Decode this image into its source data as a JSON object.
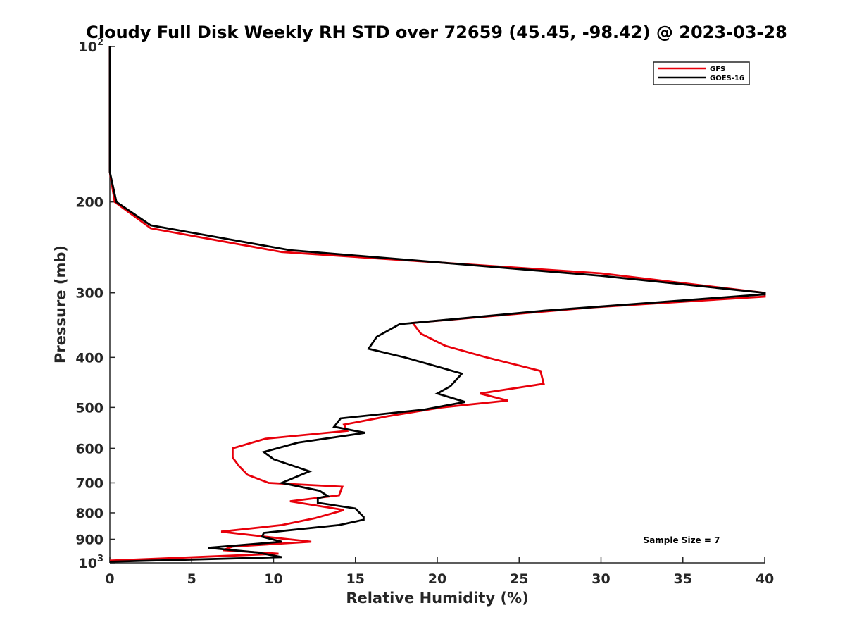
{
  "chart_data": {
    "type": "line",
    "title": "Cloudy Full Disk Weekly RH STD over 72659 (45.45, -98.42) @ 2023-03-28",
    "xlabel": "Relative Humidity (%)",
    "ylabel": "Pressure (mb)",
    "xlim": [
      0,
      40
    ],
    "ylim": [
      100,
      1000
    ],
    "yscale": "log",
    "y_reversed": true,
    "grid": false,
    "legend_position": "top-right",
    "x_ticks": [
      "0",
      "5",
      "10",
      "15",
      "20",
      "25",
      "30",
      "35",
      "40"
    ],
    "y_ticks": [
      {
        "value": 100,
        "base": "10",
        "exp": "2"
      },
      {
        "value": 200,
        "label": "200"
      },
      {
        "value": 300,
        "label": "300"
      },
      {
        "value": 400,
        "label": "400"
      },
      {
        "value": 500,
        "label": "500"
      },
      {
        "value": 600,
        "label": "600"
      },
      {
        "value": 700,
        "label": "700"
      },
      {
        "value": 800,
        "label": "800"
      },
      {
        "value": 900,
        "label": "900"
      },
      {
        "value": 1000,
        "base": "10",
        "exp": "3"
      }
    ],
    "annotation": "Sample Size = 7",
    "series": [
      {
        "name": "GFS",
        "color": "#e8000b",
        "points": [
          [
            0.0,
            100
          ],
          [
            0.0,
            150
          ],
          [
            0.0,
            175
          ],
          [
            0.3,
            200
          ],
          [
            2.5,
            225
          ],
          [
            10.5,
            250
          ],
          [
            30.0,
            275
          ],
          [
            40.0,
            300
          ],
          [
            40.0,
            305
          ],
          [
            29.5,
            320
          ],
          [
            18.5,
            343
          ],
          [
            19.0,
            360
          ],
          [
            20.5,
            380
          ],
          [
            23.0,
            400
          ],
          [
            26.3,
            425
          ],
          [
            26.5,
            450
          ],
          [
            22.6,
            470
          ],
          [
            24.3,
            485
          ],
          [
            20.3,
            500
          ],
          [
            17.0,
            520
          ],
          [
            14.3,
            540
          ],
          [
            14.5,
            555
          ],
          [
            9.5,
            575
          ],
          [
            7.5,
            600
          ],
          [
            7.5,
            625
          ],
          [
            7.9,
            650
          ],
          [
            8.4,
            675
          ],
          [
            9.7,
            700
          ],
          [
            14.2,
            712
          ],
          [
            14.0,
            740
          ],
          [
            11.0,
            760
          ],
          [
            14.3,
            790
          ],
          [
            12.5,
            820
          ],
          [
            10.5,
            845
          ],
          [
            6.8,
            870
          ],
          [
            9.5,
            890
          ],
          [
            12.3,
            910
          ],
          [
            7.5,
            930
          ],
          [
            6.9,
            945
          ],
          [
            10.3,
            960
          ],
          [
            0.0,
            990
          ]
        ]
      },
      {
        "name": "GOES-16",
        "color": "#000000",
        "points": [
          [
            0.0,
            100
          ],
          [
            0.0,
            150
          ],
          [
            0.0,
            175
          ],
          [
            0.4,
            200
          ],
          [
            2.5,
            222
          ],
          [
            11.0,
            248
          ],
          [
            30.0,
            278
          ],
          [
            40.0,
            300
          ],
          [
            40.0,
            302
          ],
          [
            26.5,
            325
          ],
          [
            17.7,
            345
          ],
          [
            16.3,
            365
          ],
          [
            15.8,
            385
          ],
          [
            18.0,
            400
          ],
          [
            21.5,
            430
          ],
          [
            20.8,
            455
          ],
          [
            20.0,
            470
          ],
          [
            21.7,
            488
          ],
          [
            19.2,
            505
          ],
          [
            14.1,
            525
          ],
          [
            13.7,
            545
          ],
          [
            15.6,
            560
          ],
          [
            11.5,
            585
          ],
          [
            9.4,
            610
          ],
          [
            10.0,
            630
          ],
          [
            12.2,
            665
          ],
          [
            10.5,
            700
          ],
          [
            12.8,
            725
          ],
          [
            13.3,
            742
          ],
          [
            12.7,
            750
          ],
          [
            12.7,
            765
          ],
          [
            15.0,
            785
          ],
          [
            15.5,
            815
          ],
          [
            15.5,
            825
          ],
          [
            14.0,
            845
          ],
          [
            9.4,
            875
          ],
          [
            9.3,
            890
          ],
          [
            10.5,
            910
          ],
          [
            6.0,
            935
          ],
          [
            9.0,
            955
          ],
          [
            10.5,
            975
          ],
          [
            0.0,
            995
          ]
        ]
      }
    ]
  }
}
